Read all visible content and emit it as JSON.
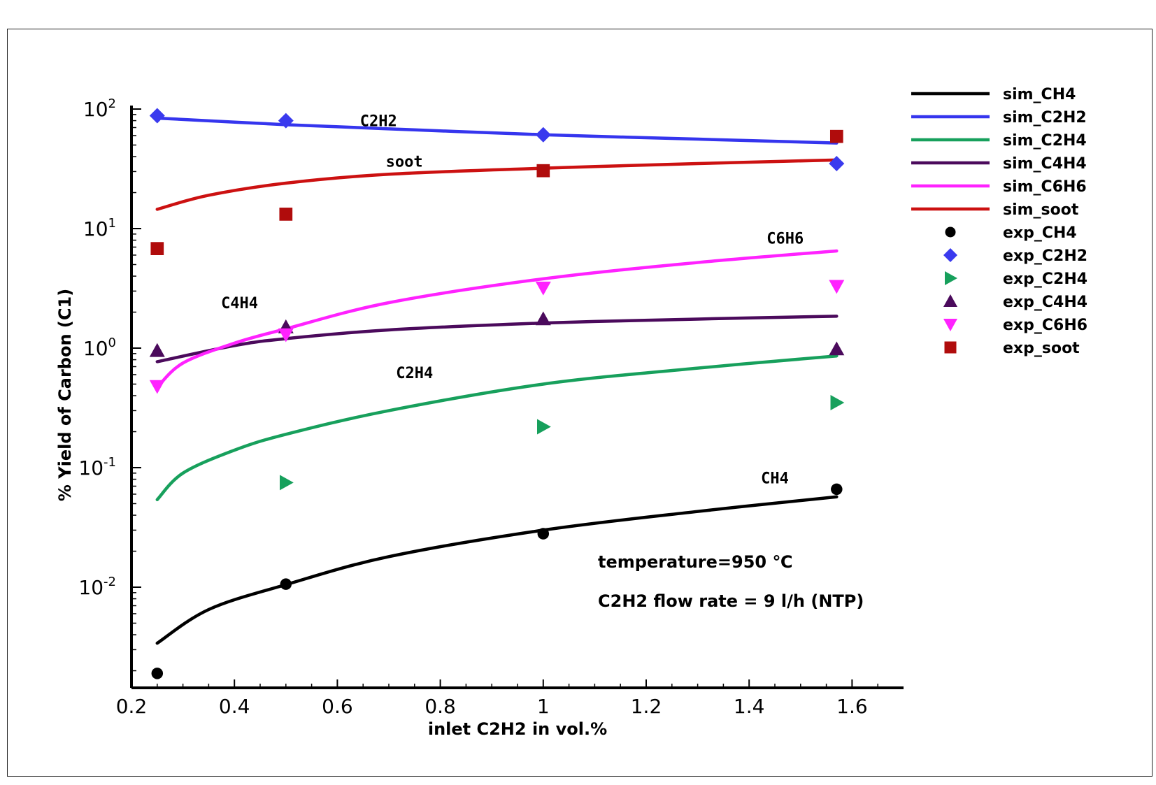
{
  "chart_data": {
    "type": "line",
    "xlabel": "inlet C2H2 in vol.%",
    "ylabel": "% Yield of Carbon (C1)",
    "xlim": [
      0.2,
      1.7
    ],
    "ylim": [
      0.0015,
      100
    ],
    "yscale": "log",
    "x_ticks": [
      "0.2",
      "0.4",
      "0.6",
      "0.8",
      "1",
      "1.2",
      "1.4",
      "1.6"
    ],
    "x_tick_values": [
      0.2,
      0.4,
      0.6,
      0.8,
      1.0,
      1.2,
      1.4,
      1.6
    ],
    "y_ticks": [
      {
        "base": "10",
        "exp": "-2",
        "value": 0.01
      },
      {
        "base": "10",
        "exp": "-1",
        "value": 0.1
      },
      {
        "base": "10",
        "exp": "0",
        "value": 1
      },
      {
        "base": "10",
        "exp": "1",
        "value": 10
      },
      {
        "base": "10",
        "exp": "2",
        "value": 100
      }
    ],
    "grid": false,
    "legend_position": "right",
    "series": [
      {
        "name": "sim_CH4",
        "kind": "line",
        "color": "#000000",
        "x": [
          0.25,
          0.35,
          0.5,
          0.7,
          1.0,
          1.3,
          1.57
        ],
        "y": [
          0.0034,
          0.0065,
          0.0105,
          0.018,
          0.03,
          0.043,
          0.057
        ]
      },
      {
        "name": "sim_C2H2",
        "kind": "line",
        "color": "#3535ee",
        "x": [
          0.25,
          0.5,
          0.75,
          1.0,
          1.3,
          1.57
        ],
        "y": [
          84,
          74,
          67,
          61,
          56,
          52
        ]
      },
      {
        "name": "sim_C2H4",
        "kind": "line",
        "color": "#17a05c",
        "x": [
          0.25,
          0.3,
          0.4,
          0.5,
          0.7,
          1.0,
          1.3,
          1.57
        ],
        "y": [
          0.054,
          0.09,
          0.14,
          0.19,
          0.3,
          0.5,
          0.68,
          0.86
        ]
      },
      {
        "name": "sim_C4H4",
        "kind": "line",
        "color": "#4b0a5c",
        "x": [
          0.25,
          0.4,
          0.5,
          0.7,
          1.0,
          1.3,
          1.57
        ],
        "y": [
          0.77,
          1.05,
          1.2,
          1.42,
          1.62,
          1.75,
          1.85
        ]
      },
      {
        "name": "sim_C6H6",
        "kind": "line",
        "color": "#ff22ff",
        "x": [
          0.25,
          0.3,
          0.4,
          0.5,
          0.7,
          1.0,
          1.3,
          1.57
        ],
        "y": [
          0.47,
          0.75,
          1.1,
          1.45,
          2.4,
          3.8,
          5.2,
          6.5
        ]
      },
      {
        "name": "sim_soot",
        "kind": "line",
        "color": "#cc1111",
        "x": [
          0.25,
          0.35,
          0.5,
          0.7,
          1.0,
          1.3,
          1.57
        ],
        "y": [
          14.5,
          19,
          24,
          28.5,
          32,
          35,
          37.5
        ]
      },
      {
        "name": "exp_CH4",
        "kind": "marker",
        "marker": "circle",
        "color": "#000000",
        "x": [
          0.25,
          0.5,
          1.0,
          1.57
        ],
        "y": [
          0.0019,
          0.0106,
          0.028,
          0.066
        ]
      },
      {
        "name": "exp_C2H2",
        "kind": "marker",
        "marker": "diamond",
        "color": "#3a3aee",
        "x": [
          0.25,
          0.5,
          1.0,
          1.57
        ],
        "y": [
          88,
          80,
          61,
          35
        ]
      },
      {
        "name": "exp_C2H4",
        "kind": "marker",
        "marker": "triangle-right",
        "color": "#17a05c",
        "x": [
          0.5,
          1.0,
          1.57
        ],
        "y": [
          0.075,
          0.22,
          0.35
        ]
      },
      {
        "name": "exp_C4H4",
        "kind": "marker",
        "marker": "triangle-up",
        "color": "#4b0a5c",
        "x": [
          0.25,
          0.5,
          1.0,
          1.57
        ],
        "y": [
          0.95,
          1.5,
          1.75,
          0.98
        ]
      },
      {
        "name": "exp_C6H6",
        "kind": "marker",
        "marker": "triangle-down",
        "color": "#ff22ff",
        "x": [
          0.25,
          0.5,
          1.0,
          1.57
        ],
        "y": [
          0.48,
          1.3,
          3.2,
          3.3
        ]
      },
      {
        "name": "exp_soot",
        "kind": "marker",
        "marker": "square",
        "color": "#b00c0c",
        "x": [
          0.25,
          0.5,
          1.0,
          1.57
        ],
        "y": [
          6.8,
          13.2,
          30.5,
          59
        ]
      }
    ],
    "series_labels": [
      {
        "text": "C2H2",
        "x": 0.68,
        "y": 72
      },
      {
        "text": "soot",
        "x": 0.73,
        "y": 33
      },
      {
        "text": "C6H6",
        "x": 1.47,
        "y": 7.5
      },
      {
        "text": "C4H4",
        "x": 0.41,
        "y": 2.15
      },
      {
        "text": "C2H4",
        "x": 0.75,
        "y": 0.56
      },
      {
        "text": "CH4",
        "x": 1.45,
        "y": 0.074
      }
    ],
    "annotations": [
      "temperature=950 ℃",
      "C2H2 flow rate = 9 l/h (NTP)"
    ]
  }
}
